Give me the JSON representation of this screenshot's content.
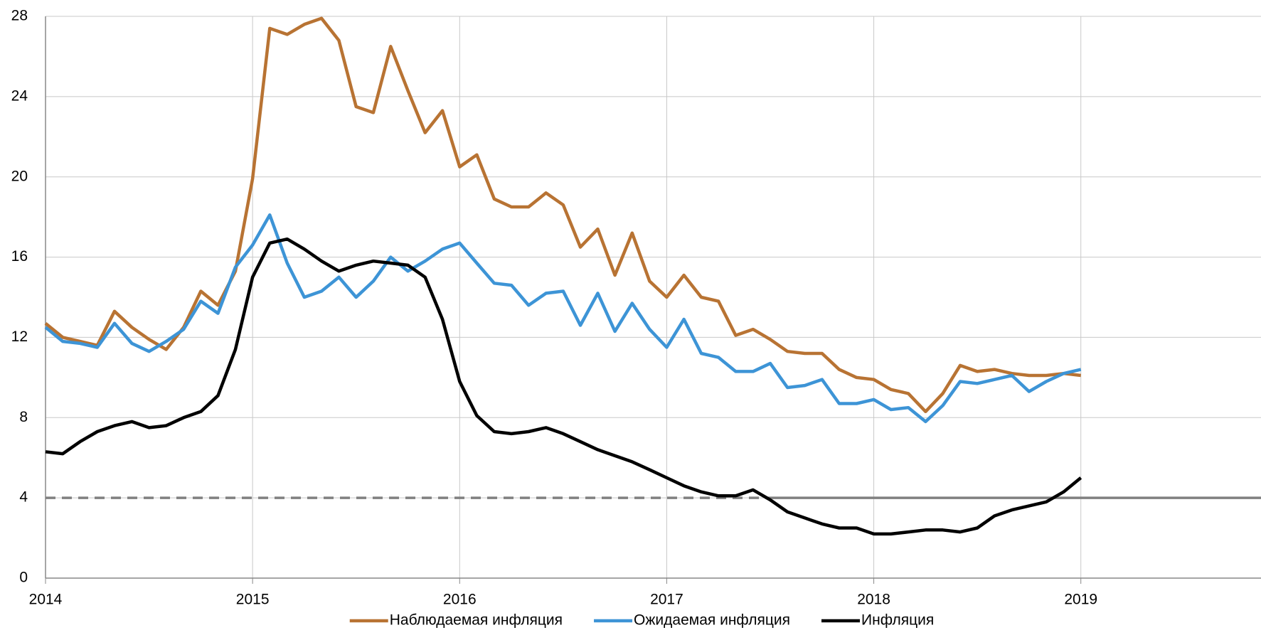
{
  "chart_data": {
    "type": "line",
    "x": [
      2014,
      2014.083,
      2014.167,
      2014.25,
      2014.333,
      2014.417,
      2014.5,
      2014.583,
      2014.667,
      2014.75,
      2014.833,
      2014.917,
      2015,
      2015.083,
      2015.167,
      2015.25,
      2015.333,
      2015.417,
      2015.5,
      2015.583,
      2015.667,
      2015.75,
      2015.833,
      2015.917,
      2016,
      2016.083,
      2016.167,
      2016.25,
      2016.333,
      2016.417,
      2016.5,
      2016.583,
      2016.667,
      2016.75,
      2016.833,
      2016.917,
      2017,
      2017.083,
      2017.167,
      2017.25,
      2017.333,
      2017.417,
      2017.5,
      2017.583,
      2017.667,
      2017.75,
      2017.833,
      2017.917,
      2018,
      2018.083,
      2018.167,
      2018.25,
      2018.333,
      2018.417,
      2018.5,
      2018.583,
      2018.667,
      2018.75,
      2018.833,
      2018.917,
      2019
    ],
    "series": [
      {
        "name": "Наблюдаемая инфляция",
        "color": "#b87333",
        "values": [
          12.7,
          12.0,
          11.8,
          11.6,
          13.3,
          12.5,
          11.9,
          11.4,
          12.5,
          14.3,
          13.6,
          15.3,
          19.9,
          27.4,
          27.1,
          27.6,
          27.9,
          26.8,
          23.5,
          23.2,
          26.5,
          24.3,
          22.2,
          23.3,
          20.5,
          21.1,
          18.9,
          18.5,
          18.5,
          19.2,
          18.6,
          16.5,
          17.4,
          15.1,
          17.2,
          14.8,
          14.0,
          15.1,
          14.0,
          13.8,
          12.1,
          12.4,
          11.9,
          11.3,
          11.2,
          11.2,
          10.4,
          10.0,
          9.9,
          9.4,
          9.2,
          8.3,
          9.2,
          10.6,
          10.3,
          10.4,
          10.2,
          10.1,
          10.1,
          10.2,
          10.1
        ]
      },
      {
        "name": "Ожидаемая инфляция",
        "color": "#3d94d6",
        "values": [
          12.5,
          11.8,
          11.7,
          11.5,
          12.7,
          11.7,
          11.3,
          11.8,
          12.4,
          13.8,
          13.2,
          15.5,
          16.6,
          18.1,
          15.7,
          14.0,
          14.3,
          15.0,
          14.0,
          14.8,
          16.0,
          15.3,
          15.8,
          16.4,
          16.7,
          15.7,
          14.7,
          14.6,
          13.6,
          14.2,
          14.3,
          12.6,
          14.2,
          12.3,
          13.7,
          12.4,
          11.5,
          12.9,
          11.2,
          11.0,
          10.3,
          10.3,
          10.7,
          9.5,
          9.6,
          9.9,
          8.7,
          8.7,
          8.9,
          8.4,
          8.5,
          7.8,
          8.6,
          9.8,
          9.7,
          9.9,
          10.1,
          9.3,
          9.8,
          10.2,
          10.4
        ]
      },
      {
        "name": "Инфляция",
        "color": "#000000",
        "values": [
          6.3,
          6.2,
          6.8,
          7.3,
          7.6,
          7.8,
          7.5,
          7.6,
          8.0,
          8.3,
          9.1,
          11.4,
          15.0,
          16.7,
          16.9,
          16.4,
          15.8,
          15.3,
          15.6,
          15.8,
          15.7,
          15.6,
          15.0,
          12.9,
          9.8,
          8.1,
          7.3,
          7.2,
          7.3,
          7.5,
          7.2,
          6.8,
          6.4,
          6.1,
          5.8,
          5.4,
          5.0,
          4.6,
          4.3,
          4.1,
          4.1,
          4.4,
          3.9,
          3.3,
          3.0,
          2.7,
          2.5,
          2.5,
          2.2,
          2.2,
          2.3,
          2.4,
          2.4,
          2.3,
          2.5,
          3.1,
          3.4,
          3.6,
          3.8,
          4.3,
          5.0
        ]
      }
    ],
    "xlim": [
      2014,
      2019.87
    ],
    "xticks": [
      2014,
      2015,
      2016,
      2017,
      2018,
      2019
    ],
    "ylim": [
      0,
      28
    ],
    "yticks": [
      0,
      4,
      8,
      12,
      16,
      20,
      24,
      28
    ],
    "grid": true,
    "legend": "bottom",
    "reference_line": {
      "value": 4,
      "color": "#808080",
      "dashed_until": 2017.5
    }
  }
}
